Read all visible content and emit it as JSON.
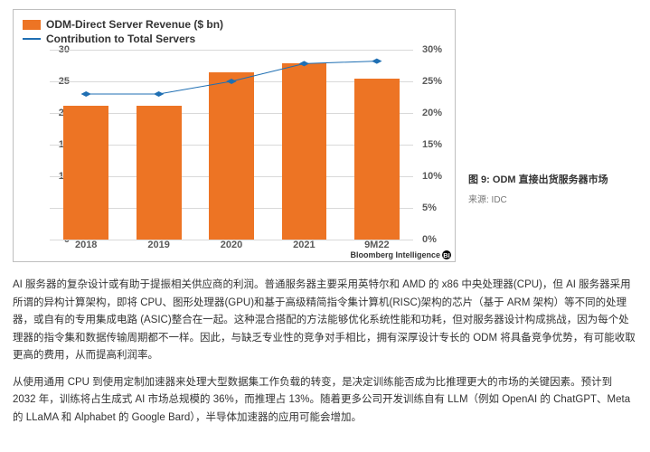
{
  "chart": {
    "type": "bar+line",
    "legend": {
      "bar_label": "ODM-Direct Server Revenue ($ bn)",
      "line_label": "Contribution to Total Servers",
      "bar_color": "#ed7424",
      "line_color": "#1f6fb3"
    },
    "categories": [
      "2018",
      "2019",
      "2020",
      "2021",
      "9M22"
    ],
    "bar_values": [
      21.2,
      21.2,
      26.5,
      27.8,
      25.5
    ],
    "bar_color": "#ed7424",
    "line_values_pct": [
      23,
      23,
      25,
      27.8,
      28.2
    ],
    "line_color": "#1f6fb3",
    "line_marker": "diamond",
    "y_left": {
      "min": 0,
      "max": 30,
      "step": 5
    },
    "y_right": {
      "min": 0,
      "max": 30,
      "step": 5,
      "suffix": "%"
    },
    "grid_color": "#d9d9d9",
    "background_color": "#ffffff",
    "label_fontsize": 11,
    "legend_fontsize": 12,
    "attribution": "Bloomberg Intelligence"
  },
  "caption": {
    "title": "图 9: ODM 直接出货服务器市场",
    "source": "来源: IDC"
  },
  "paragraphs": [
    "AI 服务器的复杂设计或有助于提振相关供应商的利润。普通服务器主要采用英特尔和 AMD 的 x86 中央处理器(CPU)，但 AI 服务器采用所谓的异构计算架构，即将 CPU、图形处理器(GPU)和基于高级精简指令集计算机(RISC)架构的芯片（基于 ARM 架构）等不同的处理器，或自有的专用集成电路 (ASIC)整合在一起。这种混合搭配的方法能够优化系统性能和功耗，但对服务器设计构成挑战，因为每个处理器的指令集和数据传输周期都不一样。因此，与缺乏专业性的竞争对手相比，拥有深厚设计专长的 ODM 将具备竞争优势，有可能收取更高的费用，从而提高利润率。",
    "从使用通用 CPU 到使用定制加速器来处理大型数据集工作负载的转变，是决定训练能否成为比推理更大的市场的关键因素。预计到 2032 年，训练将占生成式 AI 市场总规模的 36%，而推理占 13%。随着更多公司开发训练自有 LLM（例如 OpenAI 的 ChatGPT、Meta 的 LLaMA 和 Alphabet 的 Google Bard），半导体加速器的应用可能会增加。"
  ]
}
